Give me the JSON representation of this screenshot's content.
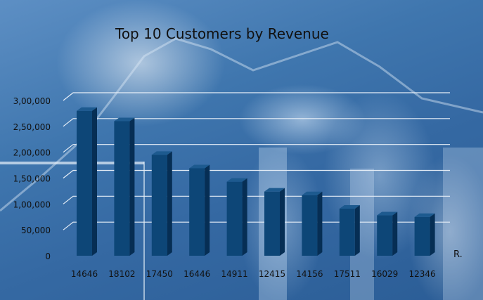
{
  "chart_data": {
    "type": "bar",
    "title": "Top 10 Customers by Revenue",
    "xlabel": "R.",
    "ylabel": "",
    "categories": [
      "14646",
      "18102",
      "17450",
      "16446",
      "14911",
      "12415",
      "14156",
      "17511",
      "16029",
      "12346"
    ],
    "values": [
      280000,
      260000,
      195000,
      169000,
      143000,
      124000,
      117000,
      91000,
      78000,
      75000
    ],
    "ylim": [
      0,
      300000
    ],
    "y_ticks": [
      {
        "value": 0,
        "label": "0"
      },
      {
        "value": 50000,
        "label": "50,000"
      },
      {
        "value": 100000,
        "label": "1,00,000"
      },
      {
        "value": 150000,
        "label": "1,50,000"
      },
      {
        "value": 200000,
        "label": "2,00,000"
      },
      {
        "value": 250000,
        "label": "2,50,000"
      },
      {
        "value": 300000,
        "label": "3,00,000"
      }
    ],
    "grid": true,
    "legend": "none",
    "bar_color": "#0d4677",
    "bar_side_color": "#062e54",
    "bar_top_color": "#1d5a8f",
    "gridline_color": "#e6eef7"
  }
}
